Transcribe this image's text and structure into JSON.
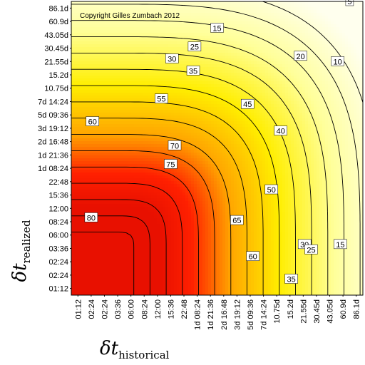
{
  "chart_data": {
    "type": "heatmap",
    "title": "",
    "annotation": "Copyright Gilles Zumbach 2012",
    "xlabel": {
      "symbol": "δt",
      "subscript": "historical"
    },
    "ylabel": {
      "symbol": "δt",
      "subscript": "realized"
    },
    "x_ticks": [
      "01:12",
      "02:24",
      "02:24",
      "03:36",
      "06:00",
      "08:24",
      "12:00",
      "15:36",
      "22:48",
      "1d 08:24",
      "1d 21:36",
      "2d 16:48",
      "3d 19:12",
      "5d 09:36",
      "7d 14:24",
      "10.75d",
      "15.2d",
      "21.55d",
      "30.45d",
      "43.05d",
      "60.9d",
      "86.1d"
    ],
    "y_ticks": [
      "86.1d",
      "60.9d",
      "43.05d",
      "30.45d",
      "21.55d",
      "15.2d",
      "10.75d",
      "7d 14:24",
      "5d 09:36",
      "3d 19:12",
      "2d 16:48",
      "1d 21:36",
      "1d 08:24",
      "22:48",
      "15:36",
      "12:00",
      "08:24",
      "06:00",
      "03:36",
      "02:24",
      "02:24",
      "01:12"
    ],
    "contour_levels": [
      5,
      10,
      15,
      20,
      25,
      30,
      35,
      40,
      45,
      50,
      55,
      60,
      65,
      70,
      75,
      80
    ],
    "contour_labels": [
      {
        "text": "5",
        "x": 20.5,
        "y": 21.5
      },
      {
        "text": "10",
        "x": 19.6,
        "y": 17.0
      },
      {
        "text": "15",
        "x": 10.5,
        "y": 19.5
      },
      {
        "text": "20",
        "x": 16.8,
        "y": 17.4
      },
      {
        "text": "25",
        "x": 8.8,
        "y": 18.1
      },
      {
        "text": "30",
        "x": 7.1,
        "y": 17.2
      },
      {
        "text": "35",
        "x": 8.7,
        "y": 16.3
      },
      {
        "text": "40",
        "x": 15.3,
        "y": 11.8
      },
      {
        "text": "45",
        "x": 12.8,
        "y": 13.8
      },
      {
        "text": "50",
        "x": 14.6,
        "y": 7.4
      },
      {
        "text": "55",
        "x": 6.3,
        "y": 14.2
      },
      {
        "text": "60",
        "x": 1.1,
        "y": 12.5
      },
      {
        "text": "60",
        "x": 13.2,
        "y": 2.4
      },
      {
        "text": "65",
        "x": 12.0,
        "y": 5.1
      },
      {
        "text": "70",
        "x": 7.3,
        "y": 10.7
      },
      {
        "text": "75",
        "x": 7.0,
        "y": 9.3
      },
      {
        "text": "80",
        "x": 1.0,
        "y": 5.3
      },
      {
        "text": "30",
        "x": 17.1,
        "y": 3.3
      },
      {
        "text": "25",
        "x": 17.6,
        "y": 2.9
      },
      {
        "text": "15",
        "x": 19.8,
        "y": 3.3
      },
      {
        "text": "35",
        "x": 16.1,
        "y": 0.7
      }
    ],
    "colormap": [
      "#ffffee",
      "#ffff9a",
      "#ffee00",
      "#ffa500",
      "#ff2000",
      "#e81000"
    ]
  }
}
